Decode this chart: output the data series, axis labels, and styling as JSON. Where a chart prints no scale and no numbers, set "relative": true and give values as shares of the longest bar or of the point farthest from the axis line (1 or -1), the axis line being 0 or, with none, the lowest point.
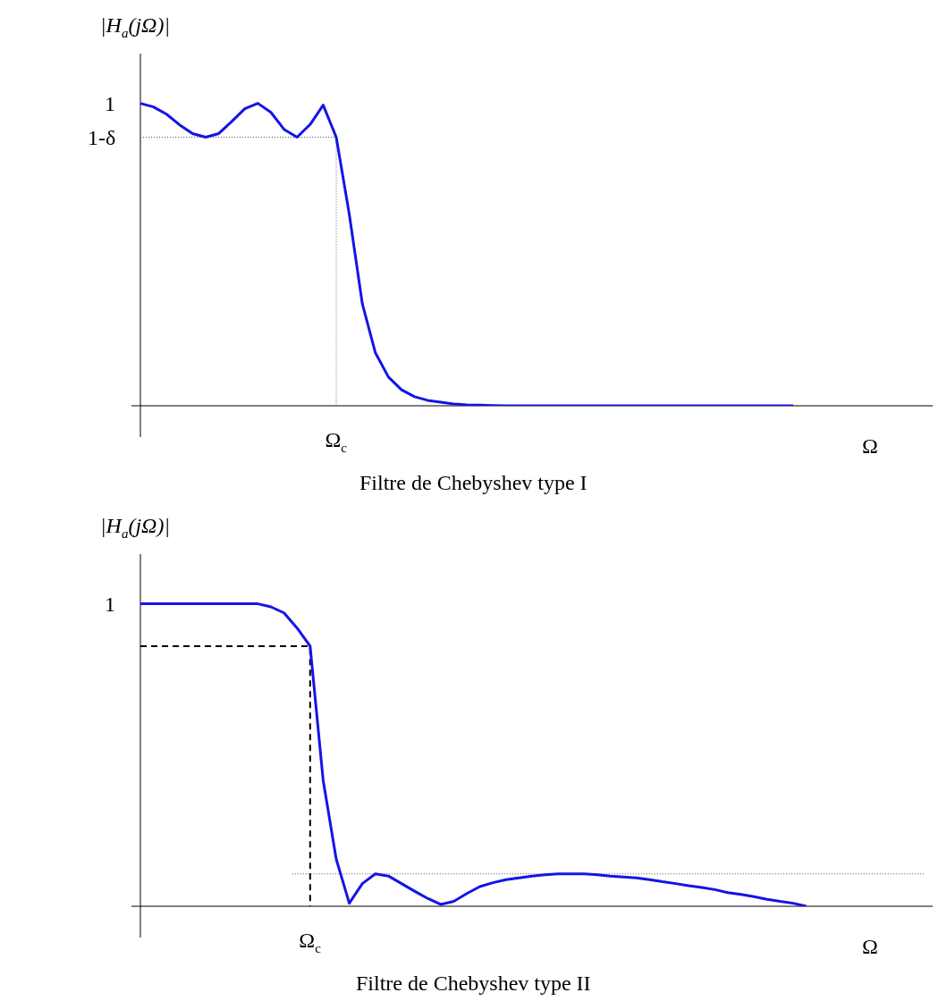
{
  "chart_data": [
    {
      "type": "line",
      "title": "Filtre de Chebyshev type I",
      "xlabel": "Ω",
      "ylabel": "|H$_{a}$(jΩ)|",
      "relative": true,
      "legend": false,
      "marker": "none",
      "categories": [
        null,
        null,
        null,
        null,
        null,
        null,
        null,
        null,
        null,
        null,
        null,
        null,
        null,
        null,
        null,
        null,
        null,
        null,
        null,
        null,
        null,
        null,
        null,
        null,
        null,
        null,
        null,
        null,
        null,
        null,
        null,
        null,
        null,
        null,
        null,
        null,
        null,
        null,
        null,
        null,
        null,
        null,
        null,
        null,
        null,
        null,
        null,
        null,
        null,
        null,
        null,
        null,
        null,
        null,
        null,
        null,
        null,
        null,
        null,
        null,
        null
      ],
      "series": [
        {
          "color": "#1414e6",
          "values": [
            1.0,
            0.988,
            0.964,
            0.929,
            0.9,
            0.888,
            0.9,
            0.94,
            0.982,
            1.0,
            0.97,
            0.914,
            0.888,
            0.93,
            0.994,
            0.888,
            0.633,
            0.337,
            0.175,
            0.095,
            0.053,
            0.03,
            0.018,
            0.012,
            0.006,
            0.003,
            0.002,
            0.001,
            0,
            0,
            0,
            0,
            0,
            0,
            0,
            0,
            0,
            0,
            0,
            0,
            0,
            0,
            0,
            0,
            0,
            0,
            0,
            0,
            0,
            0,
            0,
            null,
            null,
            null,
            null,
            null,
            null,
            null,
            null,
            null,
            null
          ]
        }
      ],
      "ref_lines": [
        {
          "axis": "y",
          "value": 0.888,
          "label": "1-δ",
          "line_style": "dotted",
          "color": "#555555"
        }
      ],
      "annotations": [
        "Ω$_{c}$",
        "1"
      ]
    },
    {
      "type": "line",
      "title": "Filtre de Chebyshev type II",
      "xlabel": "Ω",
      "ylabel": "|H$_{a}$(jΩ)|",
      "relative": true,
      "legend": false,
      "marker": "none",
      "categories": [
        null,
        null,
        null,
        null,
        null,
        null,
        null,
        null,
        null,
        null,
        null,
        null,
        null,
        null,
        null,
        null,
        null,
        null,
        null,
        null,
        null,
        null,
        null,
        null,
        null,
        null,
        null,
        null,
        null,
        null,
        null,
        null,
        null,
        null,
        null,
        null,
        null,
        null,
        null,
        null,
        null,
        null,
        null,
        null,
        null,
        null,
        null,
        null,
        null,
        null,
        null,
        null,
        null,
        null,
        null,
        null,
        null,
        null,
        null,
        null,
        null
      ],
      "series": [
        {
          "color": "#1414e6",
          "values": [
            1,
            1,
            1,
            1,
            1,
            1,
            1,
            1,
            1,
            1,
            0.99,
            0.97,
            0.92,
            0.86,
            0.416,
            0.156,
            0.01,
            0.075,
            0.107,
            0.1,
            0.075,
            0.05,
            0.026,
            0.006,
            0.016,
            0.042,
            0.065,
            0.078,
            0.088,
            0.094,
            0.1,
            0.104,
            0.107,
            0.107,
            0.107,
            0.104,
            0.1,
            0.097,
            0.094,
            0.088,
            0.081,
            0.075,
            0.068,
            0.062,
            0.055,
            0.045,
            0.039,
            0.032,
            0.023,
            0.016,
            0.01,
            0,
            null,
            null,
            null,
            null,
            null,
            null,
            null,
            null,
            null
          ]
        }
      ],
      "ref_lines": [
        {
          "axis": "y",
          "value": 0.86,
          "line_style": "dashed",
          "color": "#000000"
        },
        {
          "axis": "y",
          "value": 0.107,
          "line_style": "dotted",
          "color": "#555555"
        }
      ],
      "annotations": [
        "Ω$_{c}$",
        "1"
      ]
    }
  ]
}
